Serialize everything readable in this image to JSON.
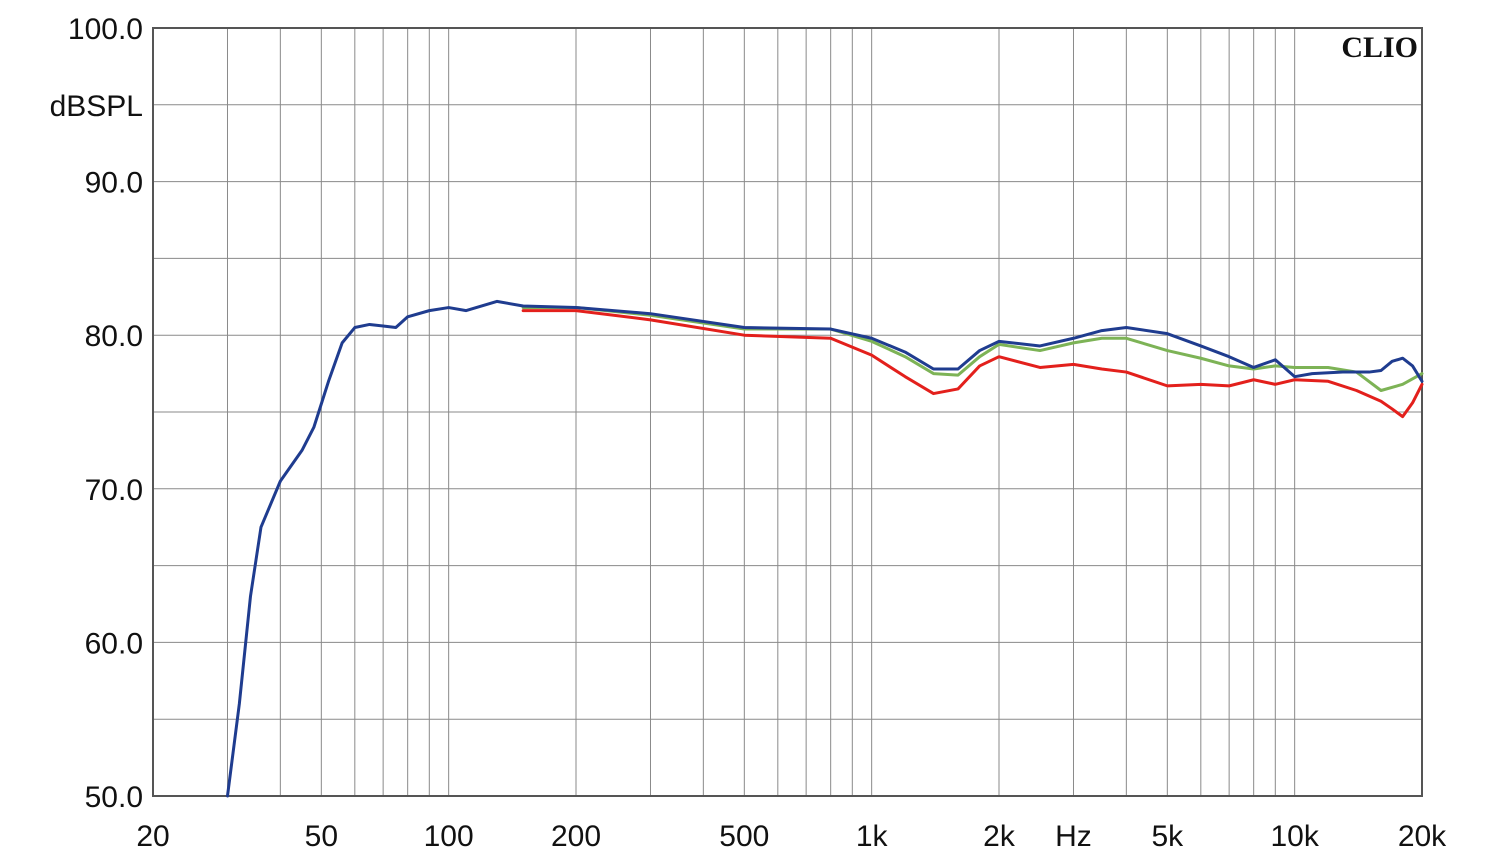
{
  "chart_data": {
    "type": "line",
    "title": "",
    "xlabel": "Hz",
    "ylabel": "dBSPL",
    "watermark": "CLIO",
    "x_scale": "log",
    "xlim": [
      20,
      20000
    ],
    "ylim": [
      50,
      100
    ],
    "grid": true,
    "x_tick_labels": [
      "20",
      "50",
      "100",
      "200",
      "500",
      "1k",
      "2k",
      "5k",
      "10k",
      "20k"
    ],
    "x_tick_values": [
      20,
      50,
      100,
      200,
      500,
      1000,
      2000,
      5000,
      10000,
      20000
    ],
    "y_tick_labels": [
      "100.0",
      "90.0",
      "80.0",
      "70.0",
      "60.0",
      "50.0"
    ],
    "y_tick_values": [
      100,
      90,
      80,
      70,
      60,
      50
    ],
    "series": [
      {
        "color": "#7db356",
        "points": [
          [
            150,
            81.8
          ],
          [
            200,
            81.8
          ],
          [
            300,
            81.3
          ],
          [
            500,
            80.4
          ],
          [
            800,
            80.4
          ],
          [
            1000,
            79.6
          ],
          [
            1200,
            78.6
          ],
          [
            1400,
            77.5
          ],
          [
            1600,
            77.4
          ],
          [
            1800,
            78.6
          ],
          [
            2000,
            79.4
          ],
          [
            2500,
            79.0
          ],
          [
            3000,
            79.5
          ],
          [
            3500,
            79.8
          ],
          [
            4000,
            79.8
          ],
          [
            5000,
            79.0
          ],
          [
            6000,
            78.5
          ],
          [
            7000,
            78.0
          ],
          [
            8000,
            77.8
          ],
          [
            9000,
            78.0
          ],
          [
            10000,
            77.9
          ],
          [
            12000,
            77.9
          ],
          [
            14000,
            77.6
          ],
          [
            16000,
            76.4
          ],
          [
            18000,
            76.8
          ],
          [
            20000,
            77.5
          ]
        ]
      },
      {
        "color": "#e3201c",
        "points": [
          [
            150,
            81.6
          ],
          [
            200,
            81.6
          ],
          [
            300,
            81.0
          ],
          [
            500,
            80.0
          ],
          [
            800,
            79.8
          ],
          [
            1000,
            78.7
          ],
          [
            1200,
            77.3
          ],
          [
            1400,
            76.2
          ],
          [
            1600,
            76.5
          ],
          [
            1800,
            78.0
          ],
          [
            2000,
            78.6
          ],
          [
            2500,
            77.9
          ],
          [
            3000,
            78.1
          ],
          [
            3500,
            77.8
          ],
          [
            4000,
            77.6
          ],
          [
            5000,
            76.7
          ],
          [
            6000,
            76.8
          ],
          [
            7000,
            76.7
          ],
          [
            8000,
            77.1
          ],
          [
            9000,
            76.8
          ],
          [
            10000,
            77.1
          ],
          [
            12000,
            77.0
          ],
          [
            14000,
            76.4
          ],
          [
            16000,
            75.7
          ],
          [
            17000,
            75.2
          ],
          [
            18000,
            74.7
          ],
          [
            19000,
            75.6
          ],
          [
            20000,
            76.8
          ]
        ]
      },
      {
        "color": "#1f3c8f",
        "points": [
          [
            30,
            50.0
          ],
          [
            32,
            56.0
          ],
          [
            34,
            63.0
          ],
          [
            36,
            67.5
          ],
          [
            40,
            70.5
          ],
          [
            45,
            72.5
          ],
          [
            48,
            74.0
          ],
          [
            52,
            77.0
          ],
          [
            56,
            79.5
          ],
          [
            60,
            80.5
          ],
          [
            65,
            80.7
          ],
          [
            70,
            80.6
          ],
          [
            75,
            80.5
          ],
          [
            80,
            81.2
          ],
          [
            90,
            81.6
          ],
          [
            100,
            81.8
          ],
          [
            110,
            81.6
          ],
          [
            130,
            82.2
          ],
          [
            150,
            81.9
          ],
          [
            200,
            81.8
          ],
          [
            300,
            81.4
          ],
          [
            500,
            80.5
          ],
          [
            800,
            80.4
          ],
          [
            1000,
            79.8
          ],
          [
            1200,
            78.9
          ],
          [
            1400,
            77.8
          ],
          [
            1600,
            77.8
          ],
          [
            1800,
            79.0
          ],
          [
            2000,
            79.6
          ],
          [
            2500,
            79.3
          ],
          [
            3000,
            79.8
          ],
          [
            3500,
            80.3
          ],
          [
            4000,
            80.5
          ],
          [
            5000,
            80.1
          ],
          [
            6000,
            79.3
          ],
          [
            7000,
            78.6
          ],
          [
            8000,
            77.9
          ],
          [
            9000,
            78.4
          ],
          [
            10000,
            77.3
          ],
          [
            11000,
            77.5
          ],
          [
            13000,
            77.6
          ],
          [
            15000,
            77.6
          ],
          [
            16000,
            77.7
          ],
          [
            17000,
            78.3
          ],
          [
            18000,
            78.5
          ],
          [
            19000,
            78.0
          ],
          [
            20000,
            77.0
          ]
        ]
      }
    ]
  }
}
